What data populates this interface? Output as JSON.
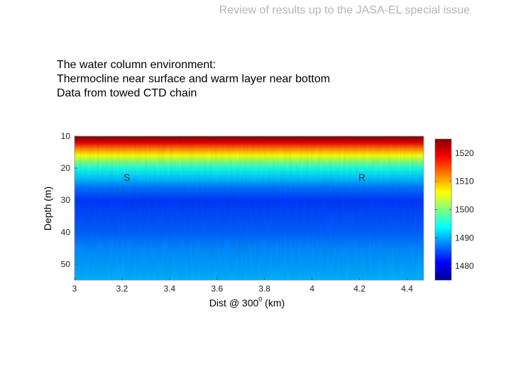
{
  "slide": {
    "header": "Review of results up to the JASA-EL special issue",
    "description": [
      "The water column environment:",
      "Thermocline near surface and warm layer near bottom",
      "Data from towed CTD chain"
    ]
  },
  "chart_data": {
    "type": "heatmap",
    "title": "",
    "xlabel_main": "Dist @ 300",
    "xlabel_sup": "0",
    "xlabel_unit": " (km)",
    "ylabel": "Depth (m)",
    "xlim": [
      3.0,
      4.47
    ],
    "ylim": [
      10,
      55
    ],
    "y_inverted": true,
    "x_ticks": [
      "3",
      "3.2",
      "3.4",
      "3.6",
      "3.8",
      "4",
      "4.2",
      "4.4"
    ],
    "y_ticks": [
      "10",
      "20",
      "30",
      "40",
      "50"
    ],
    "annotations": [
      {
        "text": "S",
        "x": 3.22,
        "y": 24
      },
      {
        "text": "R",
        "x": 4.21,
        "y": 24
      }
    ],
    "colorbar": {
      "range": [
        1475,
        1525
      ],
      "ticks": [
        "1520",
        "1510",
        "1500",
        "1490",
        "1480"
      ],
      "colormap": "jet"
    },
    "sound_speed_profile_m_s": [
      {
        "depth": 10,
        "value": 1525
      },
      {
        "depth": 12,
        "value": 1520
      },
      {
        "depth": 14,
        "value": 1512
      },
      {
        "depth": 16,
        "value": 1506
      },
      {
        "depth": 18,
        "value": 1500
      },
      {
        "depth": 20,
        "value": 1495
      },
      {
        "depth": 23,
        "value": 1491
      },
      {
        "depth": 26,
        "value": 1487
      },
      {
        "depth": 30,
        "value": 1484
      },
      {
        "depth": 35,
        "value": 1485
      },
      {
        "depth": 40,
        "value": 1486
      },
      {
        "depth": 45,
        "value": 1488
      },
      {
        "depth": 50,
        "value": 1489
      },
      {
        "depth": 55,
        "value": 1490
      }
    ]
  }
}
